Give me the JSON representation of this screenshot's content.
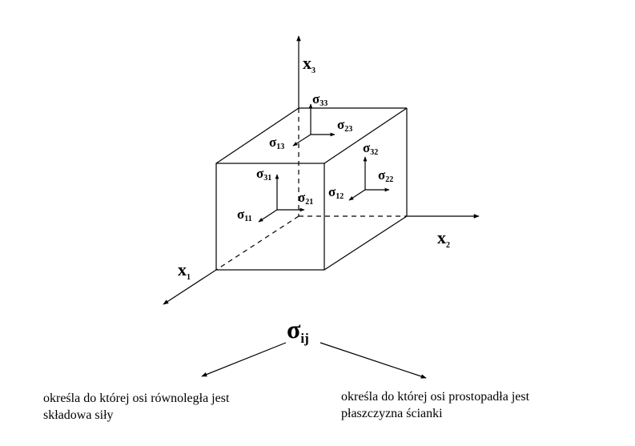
{
  "axes": {
    "x1": {
      "letter": "x",
      "index": "1"
    },
    "x2": {
      "letter": "x",
      "index": "2"
    },
    "x3": {
      "letter": "x",
      "index": "3"
    }
  },
  "stress_components": {
    "s11": {
      "symbol": "σ",
      "index": "11"
    },
    "s21": {
      "symbol": "σ",
      "index": "21"
    },
    "s31": {
      "symbol": "σ",
      "index": "31"
    },
    "s12": {
      "symbol": "σ",
      "index": "12"
    },
    "s22": {
      "symbol": "σ",
      "index": "22"
    },
    "s32": {
      "symbol": "σ",
      "index": "32"
    },
    "s13": {
      "symbol": "σ",
      "index": "13"
    },
    "s23": {
      "symbol": "σ",
      "index": "23"
    },
    "s33": {
      "symbol": "σ",
      "index": "33"
    }
  },
  "tensor": {
    "symbol": "σ",
    "index": "ij"
  },
  "descriptions": {
    "left": [
      "określa do której osi równoległa jest",
      "składowa siły"
    ],
    "right": [
      "określa do której osi prostopadła jest",
      "płaszczyzna ścianki"
    ]
  }
}
